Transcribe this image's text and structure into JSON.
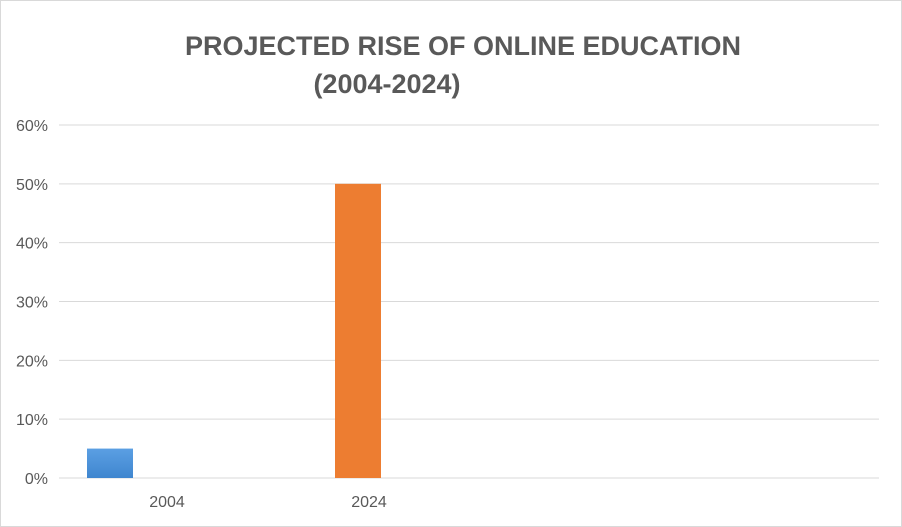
{
  "chart_data": {
    "type": "bar",
    "title_line1": "PROJECTED RISE OF ONLINE EDUCATION",
    "title_line2": "(2004-2024)",
    "categories": [
      "2004",
      "2024"
    ],
    "series": [
      {
        "values": [
          5,
          null
        ],
        "color": "#4a90d9"
      },
      {
        "values": [
          null,
          50
        ],
        "color": "#ed7d31"
      }
    ],
    "ylim": [
      0,
      60
    ],
    "yticks": [
      0,
      10,
      20,
      30,
      40,
      50,
      60
    ],
    "ytick_labels": [
      "0%",
      "10%",
      "20%",
      "30%",
      "40%",
      "50%",
      "60%"
    ],
    "grid": true,
    "legend": "none"
  }
}
